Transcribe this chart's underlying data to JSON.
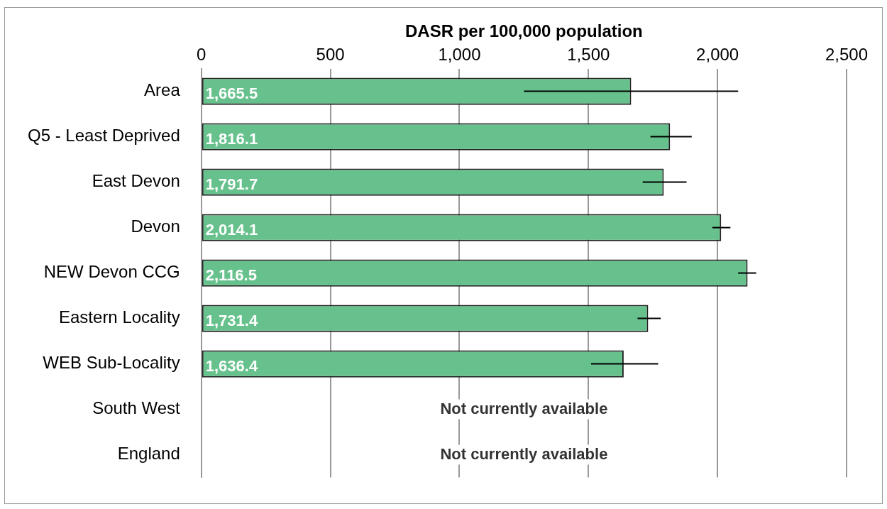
{
  "chart_data": {
    "type": "bar",
    "orientation": "horizontal",
    "xlabel": "DASR per 100,000 population",
    "categories": [
      "Area",
      "Q5 - Least Deprived",
      "East Devon",
      "Devon",
      "NEW Devon CCG",
      "Eastern Locality",
      "WEB Sub-Locality",
      "South West",
      "England"
    ],
    "values": [
      1665.5,
      1816.1,
      1791.7,
      2014.1,
      2116.5,
      1731.4,
      1636.4,
      null,
      null
    ],
    "value_labels": [
      "1,665.5",
      "1,816.1",
      "1,791.7",
      "2,014.1",
      "2,116.5",
      "1,731.4",
      "1,636.4",
      null,
      null
    ],
    "errors": [
      [
        1250,
        2080
      ],
      [
        1740,
        1900
      ],
      [
        1710,
        1880
      ],
      [
        1980,
        2050
      ],
      [
        2080,
        2150
      ],
      [
        1690,
        1780
      ],
      [
        1510,
        1770
      ],
      null,
      null
    ],
    "color": "#66c18c",
    "xlim": [
      0,
      2500
    ],
    "xticks": [
      {
        "value": 0,
        "label": "0"
      },
      {
        "value": 500,
        "label": "500"
      },
      {
        "value": 1000,
        "label": "1,000"
      },
      {
        "value": 1500,
        "label": "1,500"
      },
      {
        "value": 2000,
        "label": "2,000"
      },
      {
        "value": 2500,
        "label": "2,500"
      }
    ],
    "grid": "x",
    "legend": false,
    "annotations": [
      "Not currently available",
      "Not currently available"
    ]
  }
}
